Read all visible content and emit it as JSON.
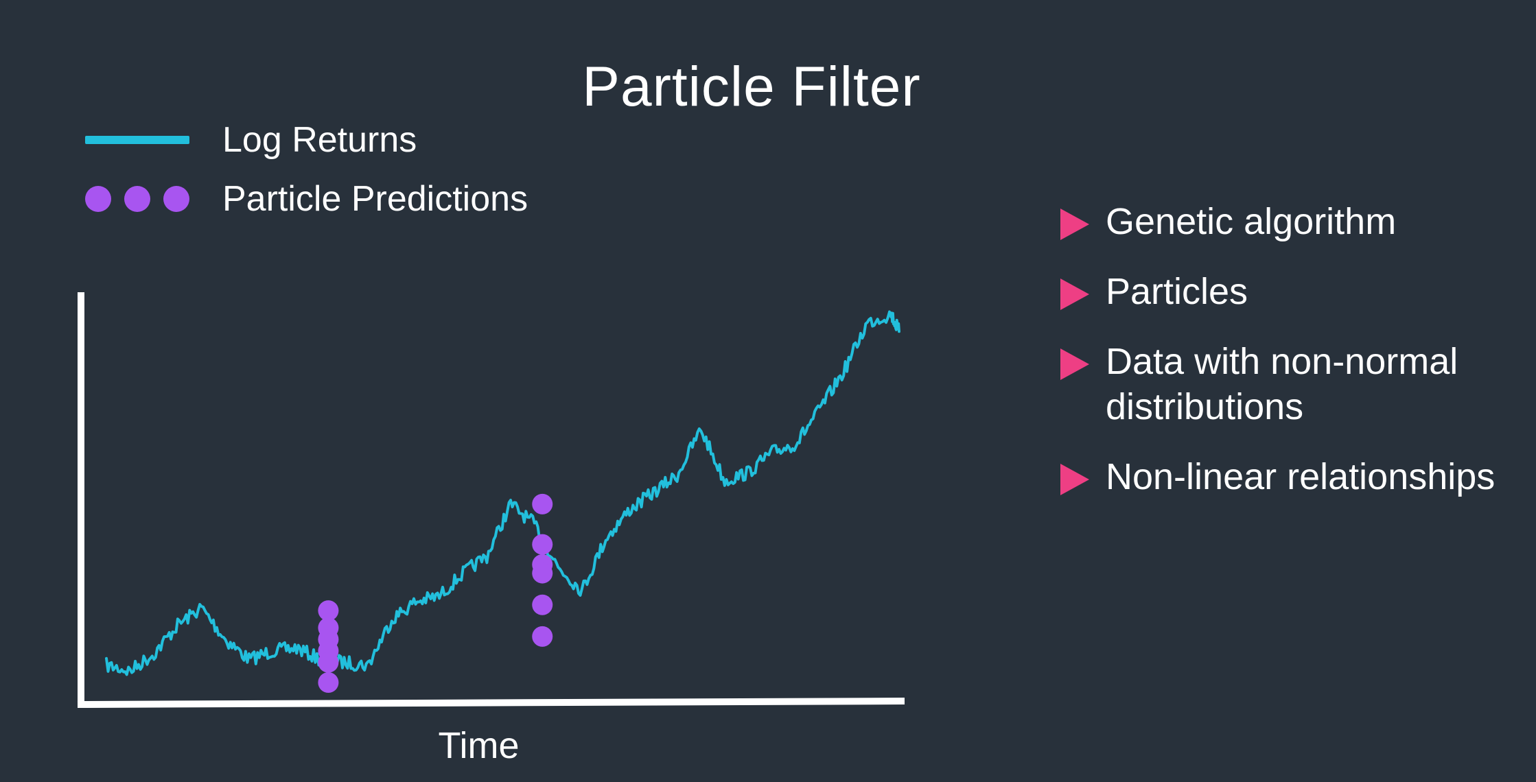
{
  "title": "Particle Filter",
  "legend": {
    "line_label": "Log Returns",
    "dots_label": "Particle Predictions",
    "line_color": "#22bfdc",
    "dot_color": "#a855f0"
  },
  "bullets": [
    "Genetic algorithm",
    "Particles",
    "Data with non-normal distributions",
    "Non-linear relationships"
  ],
  "bullet_color": "#ee3f84",
  "axis": {
    "x_label": "Time"
  },
  "chart_data": {
    "type": "line",
    "x": [
      0,
      0.03,
      0.06,
      0.09,
      0.12,
      0.15,
      0.18,
      0.21,
      0.24,
      0.27,
      0.3,
      0.33,
      0.36,
      0.39,
      0.42,
      0.45,
      0.48,
      0.51,
      0.54,
      0.57,
      0.6,
      0.63,
      0.66,
      0.69,
      0.72,
      0.75,
      0.78,
      0.81,
      0.84,
      0.87,
      0.9,
      0.93,
      0.96,
      0.99,
      1.0
    ],
    "y": [
      0.06,
      0.04,
      0.1,
      0.2,
      0.26,
      0.15,
      0.08,
      0.11,
      0.12,
      0.08,
      0.07,
      0.06,
      0.22,
      0.28,
      0.3,
      0.38,
      0.44,
      0.62,
      0.55,
      0.4,
      0.32,
      0.5,
      0.6,
      0.66,
      0.72,
      0.88,
      0.7,
      0.73,
      0.8,
      0.83,
      0.95,
      1.08,
      1.25,
      1.28,
      1.22
    ],
    "particles": [
      {
        "x": 0.28,
        "y": [
          0.25,
          0.19,
          0.15,
          0.11,
          0.07,
          0.0
        ]
      },
      {
        "x": 0.55,
        "y": [
          0.62,
          0.48,
          0.41,
          0.38,
          0.27,
          0.16
        ]
      }
    ],
    "xlabel": "Time",
    "ylabel": "",
    "series": [
      {
        "name": "Log Returns"
      },
      {
        "name": "Particle Predictions"
      }
    ]
  }
}
